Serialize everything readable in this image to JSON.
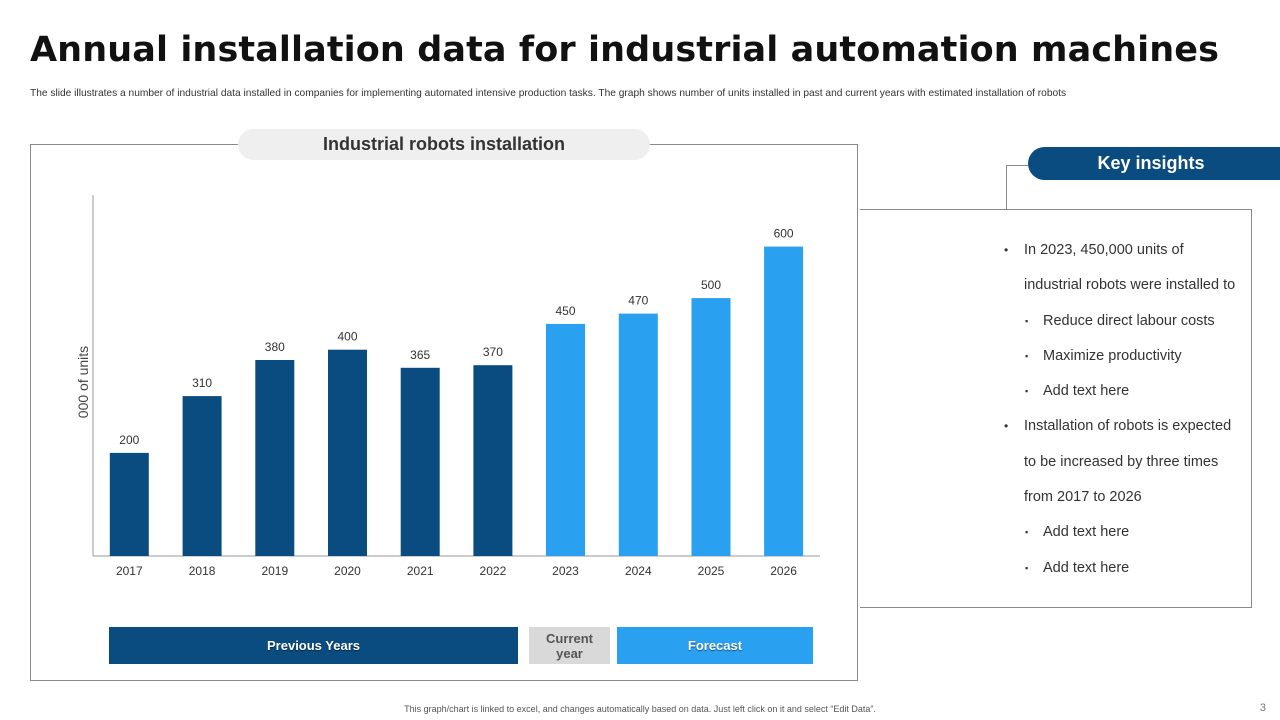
{
  "slide": {
    "title": "Annual installation data for industrial automation machines",
    "subtitle": "The slide illustrates a number of industrial data installed in companies for implementing automated intensive production tasks. The graph shows number of units installed in past and current years with estimated installation of robots",
    "footer": "This graph/chart is linked to excel, and changes automatically based on data. Just left click on it and select “Edit Data”.",
    "page_number": "3"
  },
  "colors": {
    "past": "#0a4c80",
    "current_forecast": "#2aa0f0",
    "current_label_bg": "#d9d9d9",
    "axis": "#999999"
  },
  "chart_data": {
    "type": "bar",
    "title": "Industrial robots installation",
    "ylabel": "000 of units",
    "xlabel": "",
    "categories": [
      "2017",
      "2018",
      "2019",
      "2020",
      "2021",
      "2022",
      "2023",
      "2024",
      "2025",
      "2026"
    ],
    "values": [
      200,
      310,
      380,
      400,
      365,
      370,
      450,
      470,
      500,
      600
    ],
    "bar_groups": [
      "past",
      "past",
      "past",
      "past",
      "past",
      "past",
      "current",
      "forecast",
      "forecast",
      "forecast"
    ],
    "ylim": [
      0,
      700
    ],
    "grid": false,
    "data_labels": true
  },
  "legend": {
    "previous": "Previous Years",
    "current_line1": "Current",
    "current_line2": "year",
    "forecast": "Forecast"
  },
  "insights": {
    "header": "Key insights",
    "lines": [
      {
        "level": 1,
        "bullet": "•",
        "text": "In 2023, 450,000 units of"
      },
      {
        "level": 0,
        "bullet": "",
        "text": "industrial robots were installed to"
      },
      {
        "level": 2,
        "bullet": "▪",
        "text": "Reduce direct labour costs"
      },
      {
        "level": 2,
        "bullet": "▪",
        "text": "Maximize productivity"
      },
      {
        "level": 2,
        "bullet": "▪",
        "text": "Add text here"
      },
      {
        "level": 1,
        "bullet": "•",
        "text": "Installation of robots is expected"
      },
      {
        "level": 0,
        "bullet": "",
        "text": "to be increased by three times"
      },
      {
        "level": 0,
        "bullet": "",
        "text": "from 2017 to 2026"
      },
      {
        "level": 2,
        "bullet": "▪",
        "text": "Add text here"
      },
      {
        "level": 2,
        "bullet": "▪",
        "text": "Add text here"
      }
    ]
  }
}
